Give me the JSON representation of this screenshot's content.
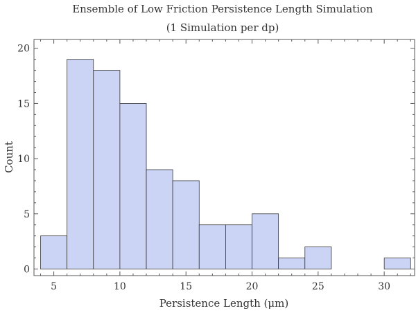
{
  "chart_data": {
    "type": "bar",
    "title": "Ensemble of Low Friction Persistence Length Simulation",
    "subtitle": "(1 Simulation per dp)",
    "xlabel": "Persistence Length (μm)",
    "ylabel": "Count",
    "xlim": [
      3.5,
      32.3
    ],
    "ylim": [
      -0.6,
      20.8
    ],
    "x_ticks": [
      5,
      10,
      15,
      20,
      25,
      30
    ],
    "y_ticks": [
      0,
      5,
      10,
      15,
      20
    ],
    "bins": [
      {
        "x0": 4,
        "x1": 6,
        "value": 3
      },
      {
        "x0": 6,
        "x1": 8,
        "value": 19
      },
      {
        "x0": 8,
        "x1": 10,
        "value": 18
      },
      {
        "x0": 10,
        "x1": 12,
        "value": 15
      },
      {
        "x0": 12,
        "x1": 14,
        "value": 9
      },
      {
        "x0": 14,
        "x1": 16,
        "value": 8
      },
      {
        "x0": 16,
        "x1": 18,
        "value": 4
      },
      {
        "x0": 18,
        "x1": 20,
        "value": 4
      },
      {
        "x0": 20,
        "x1": 22,
        "value": 5
      },
      {
        "x0": 22,
        "x1": 24,
        "value": 1
      },
      {
        "x0": 24,
        "x1": 26,
        "value": 2
      },
      {
        "x0": 30,
        "x1": 32,
        "value": 1
      }
    ],
    "grid": false,
    "bar_color": "#ccd4f5"
  }
}
